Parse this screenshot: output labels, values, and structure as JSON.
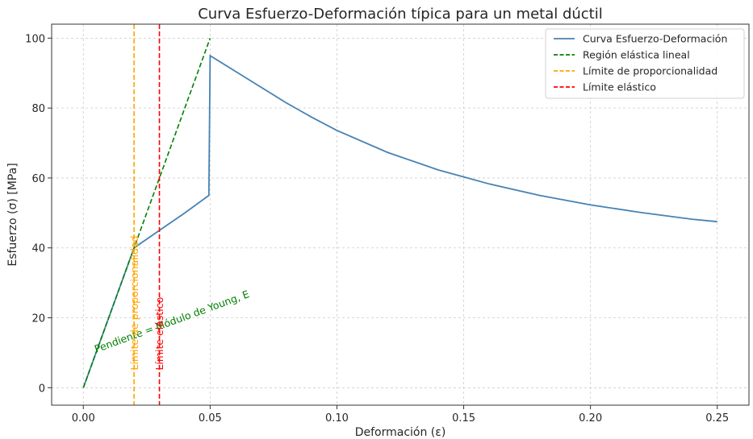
{
  "chart_data": {
    "type": "line",
    "title": "Curva Esfuerzo-Deformación típica para un metal dúctil",
    "xlabel": "Deformación (ε)",
    "ylabel": "Esfuerzo (σ) [MPa]",
    "xlim": [
      -0.0125,
      0.2625
    ],
    "ylim": [
      -5,
      104
    ],
    "xticks": [
      0.0,
      0.05,
      0.1,
      0.15,
      0.2,
      0.25
    ],
    "xtick_labels": [
      "0.00",
      "0.05",
      "0.10",
      "0.15",
      "0.20",
      "0.25"
    ],
    "yticks": [
      0,
      20,
      40,
      60,
      80,
      100
    ],
    "ytick_labels": [
      "0",
      "20",
      "40",
      "60",
      "80",
      "100"
    ],
    "grid": true,
    "legend_position": "top-right",
    "series": [
      {
        "name": "Curva Esfuerzo-Deformación",
        "color": "#4682b4",
        "style": "solid",
        "x": [
          0.0,
          0.02,
          0.03,
          0.04,
          0.0495,
          0.05,
          0.06,
          0.07,
          0.08,
          0.09,
          0.1,
          0.12,
          0.14,
          0.15,
          0.16,
          0.18,
          0.2,
          0.22,
          0.24,
          0.25
        ],
        "y": [
          0,
          40,
          45,
          50,
          55,
          95,
          90.5,
          86,
          81.5,
          77.4,
          73.6,
          67.3,
          62.3,
          60.3,
          58.3,
          55,
          52.3,
          50.1,
          48.2,
          47.5
        ]
      },
      {
        "name": "Región elástica lineal",
        "color": "#008000",
        "style": "dashed",
        "x": [
          0.0,
          0.05
        ],
        "y": [
          0,
          100
        ]
      },
      {
        "name": "Límite de proporcionalidad",
        "color": "#ffa500",
        "style": "dashed",
        "vline": 0.02
      },
      {
        "name": "Límite elástico",
        "color": "#ff0000",
        "style": "dashed",
        "vline": 0.03
      }
    ],
    "annotations": [
      {
        "text": "Pendiente = Módulo de Young, E",
        "x": 0.005,
        "y": 10,
        "rotation": -20,
        "color": "#008000"
      },
      {
        "text": "Límite de proporcionalidad",
        "x": 0.0215,
        "y": 5,
        "rotation": -90,
        "color": "#ffa500"
      },
      {
        "text": "Límite elástico",
        "x": 0.0315,
        "y": 5,
        "rotation": -90,
        "color": "#ff0000"
      }
    ]
  }
}
